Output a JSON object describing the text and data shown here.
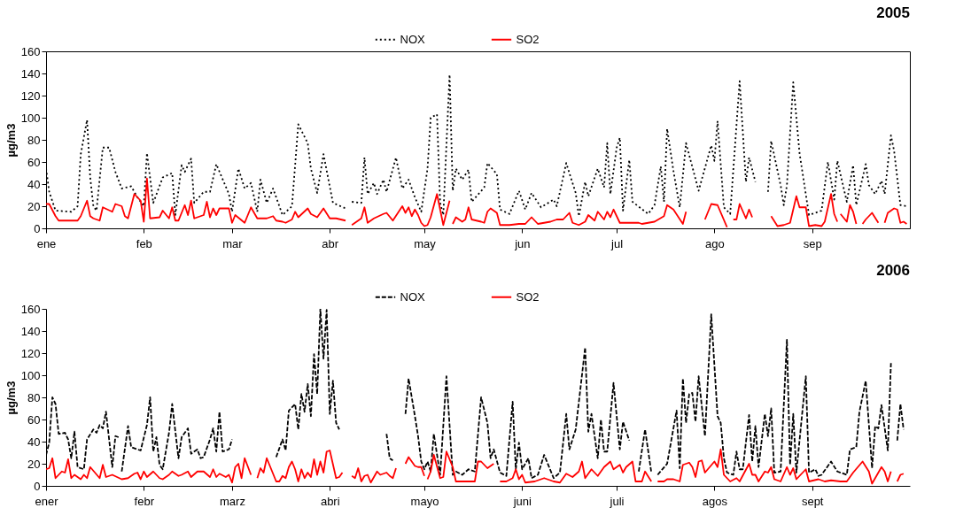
{
  "chart_data": [
    {
      "type": "line",
      "title": "2005",
      "ylabel": "µg/m3",
      "xlim": [
        "2005-01-01",
        "2005-10-02"
      ],
      "ylim": [
        0,
        160
      ],
      "xticks": [
        {
          "value": "2005-01-01",
          "label": "ene"
        },
        {
          "value": "2005-02-01",
          "label": "feb"
        },
        {
          "value": "2005-03-01",
          "label": "mar"
        },
        {
          "value": "2005-04-01",
          "label": "abr"
        },
        {
          "value": "2005-05-01",
          "label": "may"
        },
        {
          "value": "2005-06-01",
          "label": "jun"
        },
        {
          "value": "2005-07-01",
          "label": "jul"
        },
        {
          "value": "2005-08-01",
          "label": "ago"
        },
        {
          "value": "2005-09-01",
          "label": "sep"
        }
      ],
      "yticks": [
        0,
        20,
        40,
        60,
        80,
        100,
        120,
        140,
        160
      ],
      "grid": false,
      "legend": "top",
      "series": [
        {
          "name": "NOX",
          "color": "#000000",
          "line_style": "dotted",
          "x": [
            "2005-01-01",
            "2005-01-02",
            "2005-01-04",
            "2005-01-09",
            "2005-01-11",
            "2005-01-12",
            "2005-01-14",
            "2005-01-15",
            "2005-01-16",
            "2005-01-17",
            "2005-01-19",
            "2005-01-21",
            "2005-01-23",
            "2005-01-25",
            "2005-01-28",
            "2005-01-30",
            "2005-02-01",
            "2005-02-02",
            "2005-02-04",
            "2005-02-07",
            "2005-02-10",
            "2005-02-11",
            "2005-02-13",
            "2005-02-14",
            "2005-02-16",
            "2005-02-17",
            "2005-02-20",
            "2005-02-22",
            "2005-02-24",
            "2005-02-28",
            "2005-03-01",
            "2005-03-03",
            "2005-03-05",
            "2005-03-07",
            "2005-03-09",
            "2005-03-10",
            "2005-03-12",
            "2005-03-14",
            "2005-03-17",
            "2005-03-20",
            "2005-03-22",
            "2005-03-25",
            "2005-03-26",
            "2005-03-28",
            "2005-03-30",
            "2005-04-02",
            "2005-04-06",
            "2005-04-07",
            "2005-04-08",
            "2005-04-11",
            "2005-04-12",
            "2005-04-13",
            "2005-04-15",
            "2005-04-16",
            "2005-04-18",
            "2005-04-19",
            "2005-04-22",
            "2005-04-24",
            "2005-04-26",
            "2005-04-28",
            "2005-04-30",
            "2005-05-02",
            "2005-05-03",
            "2005-05-05",
            "2005-05-06",
            "2005-05-07",
            "2005-05-09",
            "2005-05-10",
            "2005-05-11",
            "2005-05-13",
            "2005-05-15",
            "2005-05-16",
            "2005-05-20",
            "2005-05-21",
            "2005-05-24",
            "2005-05-25",
            "2005-05-28",
            "2005-05-31",
            "2005-06-02",
            "2005-06-04",
            "2005-06-07",
            "2005-06-11",
            "2005-06-12",
            "2005-06-15",
            "2005-06-18",
            "2005-06-19",
            "2005-06-21",
            "2005-06-22",
            "2005-06-25",
            "2005-06-27",
            "2005-06-28",
            "2005-06-29",
            "2005-07-01",
            "2005-07-02",
            "2005-07-03",
            "2005-07-05",
            "2005-07-06",
            "2005-07-11",
            "2005-07-13",
            "2005-07-15",
            "2005-07-16",
            "2005-07-17",
            "2005-07-19",
            "2005-07-21",
            "2005-07-23",
            "2005-07-27",
            "2005-07-31",
            "2005-08-01",
            "2005-08-02",
            "2005-08-04",
            "2005-08-06",
            "2005-08-09",
            "2005-08-11",
            "2005-08-12",
            "2005-08-14",
            "2005-08-16",
            "2005-08-18",
            "2005-08-19",
            "2005-08-22",
            "2005-08-23",
            "2005-08-24",
            "2005-08-26",
            "2005-08-28",
            "2005-08-31",
            "2005-09-04",
            "2005-09-06",
            "2005-09-08",
            "2005-09-09",
            "2005-09-12",
            "2005-09-14",
            "2005-09-15",
            "2005-09-18",
            "2005-09-19",
            "2005-09-21",
            "2005-09-23",
            "2005-09-24",
            "2005-09-26",
            "2005-09-27",
            "2005-09-29",
            "2005-10-01"
          ],
          "values": [
            54,
            33,
            16,
            15,
            20,
            67,
            98,
            46,
            20,
            16,
            73,
            73,
            51,
            36,
            38,
            28,
            20,
            68,
            23,
            46,
            50,
            12,
            57,
            51,
            63,
            23,
            33,
            33,
            58,
            31,
            15,
            54,
            36,
            41,
            15,
            44,
            23,
            36,
            12,
            20,
            94,
            77,
            54,
            32,
            67,
            23,
            18,
            null,
            24,
            23,
            64,
            31,
            41,
            31,
            44,
            33,
            64,
            36,
            44,
            28,
            15,
            54,
            100,
            103,
            23,
            12,
            139,
            34,
            54,
            44,
            53,
            24,
            37,
            59,
            49,
            17,
            13,
            34,
            17,
            32,
            19,
            26,
            20,
            59,
            32,
            11,
            42,
            29,
            54,
            37,
            77,
            31,
            73,
            82,
            16,
            62,
            24,
            13,
            21,
            56,
            24,
            90,
            52,
            19,
            77,
            34,
            75,
            61,
            97,
            19,
            13,
            133,
            42,
            64,
            42,
            null,
            33,
            79,
            39,
            21,
            39,
            132,
            68,
            12,
            16,
            60,
            26,
            61,
            24,
            57,
            21,
            58,
            39,
            31,
            43,
            31,
            84,
            70,
            21,
            20
          ]
        },
        {
          "name": "SO2",
          "color": "#ff0000",
          "line_style": "solid",
          "x": [
            "2005-01-01",
            "2005-01-02",
            "2005-01-04",
            "2005-01-05",
            "2005-01-11",
            "2005-01-12",
            "2005-01-14",
            "2005-01-15",
            "2005-01-16",
            "2005-01-18",
            "2005-01-19",
            "2005-01-22",
            "2005-01-23",
            "2005-01-25",
            "2005-01-26",
            "2005-01-27",
            "2005-01-29",
            "2005-01-31",
            "2005-02-01",
            "2005-02-02",
            "2005-02-03",
            "2005-02-06",
            "2005-02-07",
            "2005-02-09",
            "2005-02-10",
            "2005-02-11",
            "2005-02-12",
            "2005-02-14",
            "2005-02-15",
            "2005-02-16",
            "2005-02-17",
            "2005-02-20",
            "2005-02-21",
            "2005-02-22",
            "2005-02-23",
            "2005-02-24",
            "2005-02-25",
            "2005-02-27",
            "2005-02-28",
            "2005-03-01",
            "2005-03-02",
            "2005-03-05",
            "2005-03-07",
            "2005-03-09",
            "2005-03-12",
            "2005-03-14",
            "2005-03-15",
            "2005-03-17",
            "2005-03-18",
            "2005-03-20",
            "2005-03-21",
            "2005-03-22",
            "2005-03-25",
            "2005-03-26",
            "2005-03-28",
            "2005-03-30",
            "2005-04-01",
            "2005-04-03",
            "2005-04-06",
            "2005-04-07",
            "2005-04-08",
            "2005-04-11",
            "2005-04-12",
            "2005-04-13",
            "2005-04-15",
            "2005-04-18",
            "2005-04-19",
            "2005-04-21",
            "2005-04-24",
            "2005-04-25",
            "2005-04-26",
            "2005-04-27",
            "2005-04-28",
            "2005-04-29",
            "2005-04-30",
            "2005-05-01",
            "2005-05-02",
            "2005-05-03",
            "2005-05-05",
            "2005-05-07",
            "2005-05-09",
            "2005-05-09T12:00",
            "2005-05-10",
            "2005-05-11",
            "2005-05-13",
            "2005-05-14",
            "2005-05-15",
            "2005-05-16",
            "2005-05-19",
            "2005-05-20",
            "2005-05-21",
            "2005-05-22",
            "2005-05-24",
            "2005-05-25",
            "2005-05-28",
            "2005-05-31",
            "2005-06-02",
            "2005-06-04",
            "2005-06-06",
            "2005-06-10",
            "2005-06-12",
            "2005-06-14",
            "2005-06-16",
            "2005-06-17",
            "2005-06-19",
            "2005-06-21",
            "2005-06-22",
            "2005-06-24",
            "2005-06-25",
            "2005-06-27",
            "2005-06-28",
            "2005-06-29",
            "2005-06-30",
            "2005-07-02",
            "2005-07-08",
            "2005-07-09",
            "2005-07-13",
            "2005-07-16",
            "2005-07-17",
            "2005-07-19",
            "2005-07-22",
            "2005-07-23",
            "2005-07-26",
            "2005-07-29",
            "2005-07-31",
            "2005-08-02",
            "2005-08-05",
            "2005-08-06",
            "2005-08-07",
            "2005-08-08",
            "2005-08-09",
            "2005-08-11",
            "2005-08-12",
            "2005-08-13",
            "2005-08-16",
            "2005-08-19",
            "2005-08-21",
            "2005-08-23",
            "2005-08-25",
            "2005-08-27",
            "2005-08-28",
            "2005-08-30",
            "2005-08-31",
            "2005-09-02",
            "2005-09-04",
            "2005-09-05",
            "2005-09-07",
            "2005-09-08",
            "2005-09-09",
            "2005-09-09T12:00",
            "2005-09-10",
            "2005-09-12",
            "2005-09-13",
            "2005-09-14",
            "2005-09-15",
            "2005-09-16",
            "2005-09-17",
            "2005-09-18",
            "2005-09-20",
            "2005-09-22",
            "2005-09-23",
            "2005-09-24",
            "2005-09-25",
            "2005-09-27",
            "2005-09-28",
            "2005-09-29",
            "2005-09-30",
            "2005-10-01"
          ],
          "values": [
            22,
            22,
            11,
            7,
            7,
            11,
            25,
            11,
            9,
            7,
            19,
            15,
            22,
            20,
            11,
            9,
            31,
            25,
            6,
            45,
            9,
            10,
            16,
            9,
            19,
            7,
            7,
            21,
            12,
            25,
            9,
            12,
            24,
            10,
            18,
            12,
            18,
            18,
            18,
            5,
            12,
            5,
            19,
            9,
            9,
            11,
            7,
            6,
            5,
            8,
            15,
            10,
            18,
            13,
            10,
            18,
            9,
            9,
            7,
            null,
            3,
            9,
            19,
            5,
            9,
            13,
            14,
            7,
            20,
            14,
            19,
            11,
            17,
            12,
            5,
            2,
            3,
            10,
            31,
            3,
            25,
            null,
            4,
            10,
            6,
            8,
            19,
            8,
            6,
            5,
            15,
            18,
            14,
            3,
            3,
            4,
            4,
            10,
            4,
            6,
            8,
            8,
            14,
            5,
            3,
            6,
            12,
            7,
            15,
            8,
            15,
            10,
            17,
            5,
            5,
            4,
            6,
            11,
            21,
            17,
            4,
            15,
            null,
            8,
            22,
            21,
            1,
            null,
            8,
            8,
            22,
            9,
            17,
            10,
            null,
            11,
            2,
            3,
            5,
            29,
            19,
            19,
            2,
            3,
            2,
            6,
            31,
            13,
            6,
            null,
            13,
            6,
            21,
            15,
            4,
            null,
            4,
            8,
            14,
            5,
            null,
            5,
            14,
            18,
            17,
            5,
            6,
            4
          ]
        }
      ]
    },
    {
      "type": "line",
      "title": "2006",
      "ylabel": "µg/m3",
      "xlim": [
        "2006-01-01",
        "2006-10-02"
      ],
      "ylim": [
        0,
        160
      ],
      "xticks": [
        {
          "value": "2006-01-01",
          "label": "ener"
        },
        {
          "value": "2006-02-01",
          "label": "febr"
        },
        {
          "value": "2006-03-01",
          "label": "marz"
        },
        {
          "value": "2006-04-01",
          "label": "abri"
        },
        {
          "value": "2006-05-01",
          "label": "mayo"
        },
        {
          "value": "2006-06-01",
          "label": "juni"
        },
        {
          "value": "2006-07-01",
          "label": "juli"
        },
        {
          "value": "2006-08-01",
          "label": "agos"
        },
        {
          "value": "2006-09-01",
          "label": "sept"
        }
      ],
      "yticks": [
        0,
        20,
        40,
        60,
        80,
        100,
        120,
        140,
        160
      ],
      "grid": false,
      "legend": "top",
      "series": [
        {
          "name": "NOX",
          "color": "#000000",
          "line_style": "dashed",
          "x": [
            "2006-01-01",
            "2006-01-02",
            "2006-01-03",
            "2006-01-04",
            "2006-01-05",
            "2006-01-07",
            "2006-01-08",
            "2006-01-09",
            "2006-01-10",
            "2006-01-11",
            "2006-01-13",
            "2006-01-14",
            "2006-01-16",
            "2006-01-17",
            "2006-01-18",
            "2006-01-19",
            "2006-01-20",
            "2006-01-22",
            "2006-01-23",
            "2006-01-24",
            "2006-01-24T12:00",
            "2006-01-25",
            "2006-01-27",
            "2006-01-28",
            "2006-01-31",
            "2006-02-02",
            "2006-02-03",
            "2006-02-04",
            "2006-02-05",
            "2006-02-06",
            "2006-02-07",
            "2006-02-09",
            "2006-02-10",
            "2006-02-12",
            "2006-02-13",
            "2006-02-15",
            "2006-02-16",
            "2006-02-18",
            "2006-02-19",
            "2006-02-20",
            "2006-02-22",
            "2006-02-23",
            "2006-02-24",
            "2006-02-25",
            "2006-02-26",
            "2006-02-28",
            "2006-03-01",
            "2006-03-08",
            "2006-03-15",
            "2006-03-17",
            "2006-03-18",
            "2006-03-19",
            "2006-03-21",
            "2006-03-22",
            "2006-03-23",
            "2006-03-24",
            "2006-03-25",
            "2006-03-26",
            "2006-03-27",
            "2006-03-28",
            "2006-03-29",
            "2006-03-30",
            "2006-03-31",
            "2006-04-01",
            "2006-04-02",
            "2006-04-03",
            "2006-04-04",
            "2006-04-10",
            "2006-04-19",
            "2006-04-20",
            "2006-04-21",
            "2006-04-23",
            "2006-04-25",
            "2006-04-26",
            "2006-04-28",
            "2006-04-29",
            "2006-04-30",
            "2006-05-01",
            "2006-05-02",
            "2006-05-03",
            "2006-05-04",
            "2006-05-06",
            "2006-05-08",
            "2006-05-10",
            "2006-05-11",
            "2006-05-13",
            "2006-05-15",
            "2006-05-17",
            "2006-05-19",
            "2006-05-21",
            "2006-05-22",
            "2006-05-23",
            "2006-05-25",
            "2006-05-27",
            "2006-05-29",
            "2006-05-30",
            "2006-05-31",
            "2006-06-01",
            "2006-06-03",
            "2006-06-04",
            "2006-06-06",
            "2006-06-08",
            "2006-06-11",
            "2006-06-13",
            "2006-06-15",
            "2006-06-16",
            "2006-06-18",
            "2006-06-21",
            "2006-06-22",
            "2006-06-23",
            "2006-06-25",
            "2006-06-26",
            "2006-06-27",
            "2006-06-28",
            "2006-06-30",
            "2006-07-02",
            "2006-07-03",
            "2006-07-05",
            "2006-07-06",
            "2006-07-08",
            "2006-07-10",
            "2006-07-12",
            "2006-07-13",
            "2006-07-14",
            "2006-07-17",
            "2006-07-20",
            "2006-07-21",
            "2006-07-22",
            "2006-07-23",
            "2006-07-24",
            "2006-07-25",
            "2006-07-26",
            "2006-07-27",
            "2006-07-29",
            "2006-07-31",
            "2006-08-02",
            "2006-08-03",
            "2006-08-04",
            "2006-08-05",
            "2006-08-07",
            "2006-08-08",
            "2006-08-09",
            "2006-08-10",
            "2006-08-12",
            "2006-08-13",
            "2006-08-14",
            "2006-08-15",
            "2006-08-17",
            "2006-08-18",
            "2006-08-19",
            "2006-08-20",
            "2006-08-22",
            "2006-08-24",
            "2006-08-25",
            "2006-08-26",
            "2006-08-27",
            "2006-08-30",
            "2006-08-31",
            "2006-09-02",
            "2006-09-03",
            "2006-09-04",
            "2006-09-07",
            "2006-09-09",
            "2006-09-12",
            "2006-09-13",
            "2006-09-15",
            "2006-09-16",
            "2006-09-18",
            "2006-09-20",
            "2006-09-21",
            "2006-09-22",
            "2006-09-23",
            "2006-09-25",
            "2006-09-26",
            "2006-09-27",
            "2006-09-28",
            "2006-09-29",
            "2006-09-30"
          ],
          "values": [
            28,
            39,
            80,
            74,
            47,
            48,
            42,
            25,
            49,
            17,
            15,
            42,
            51,
            48,
            55,
            52,
            67,
            17,
            45,
            44,
            null,
            13,
            54,
            35,
            32,
            55,
            80,
            31,
            44,
            19,
            15,
            48,
            74,
            25,
            44,
            52,
            29,
            33,
            25,
            26,
            42,
            52,
            31,
            67,
            31,
            33,
            42,
            null,
            26,
            42,
            32,
            68,
            74,
            51,
            83,
            67,
            92,
            63,
            119,
            83,
            160,
            115,
            159,
            65,
            95,
            57,
            51,
            null,
            47,
            25,
            23,
            null,
            65,
            97,
            63,
            45,
            22,
            15,
            22,
            13,
            47,
            10,
            99,
            10,
            13,
            10,
            15,
            13,
            80,
            57,
            25,
            33,
            12,
            9,
            76,
            15,
            39,
            15,
            25,
            7,
            10,
            28,
            7,
            12,
            65,
            33,
            51,
            125,
            49,
            65,
            25,
            60,
            31,
            31,
            93,
            33,
            58,
            41,
            null,
            13,
            51,
            12,
            null,
            10,
            20,
            68,
            16,
            97,
            57,
            83,
            84,
            58,
            99,
            45,
            155,
            63,
            57,
            25,
            12,
            10,
            31,
            15,
            15,
            64,
            22,
            54,
            17,
            65,
            45,
            70,
            12,
            13,
            132,
            19,
            65,
            12,
            99,
            12,
            15,
            9,
            10,
            22,
            13,
            10,
            33,
            35,
            67,
            95,
            16,
            54,
            52,
            73,
            32,
            111,
            null,
            41,
            74,
            51
          ]
        },
        {
          "name": "SO2",
          "color": "#ff0000",
          "line_style": "solid",
          "x": [
            "2006-01-01",
            "2006-01-02",
            "2006-01-03",
            "2006-01-04",
            "2006-01-06",
            "2006-01-07",
            "2006-01-08",
            "2006-01-09",
            "2006-01-10",
            "2006-01-12",
            "2006-01-13",
            "2006-01-14",
            "2006-01-15",
            "2006-01-18",
            "2006-01-19",
            "2006-01-20",
            "2006-01-22",
            "2006-01-25",
            "2006-01-27",
            "2006-01-29",
            "2006-01-30",
            "2006-01-31",
            "2006-02-01",
            "2006-02-02",
            "2006-02-04",
            "2006-02-06",
            "2006-02-07",
            "2006-02-09",
            "2006-02-10",
            "2006-02-12",
            "2006-02-13",
            "2006-02-15",
            "2006-02-16",
            "2006-02-18",
            "2006-02-20",
            "2006-02-22",
            "2006-02-23",
            "2006-02-24",
            "2006-02-25",
            "2006-02-27",
            "2006-02-28",
            "2006-03-01",
            "2006-03-02",
            "2006-03-03",
            "2006-03-04",
            "2006-03-05",
            "2006-03-07",
            "2006-03-08",
            "2006-03-09",
            "2006-03-10",
            "2006-03-11",
            "2006-03-12",
            "2006-03-15",
            "2006-03-16",
            "2006-03-17",
            "2006-03-18",
            "2006-03-19",
            "2006-03-20",
            "2006-03-21",
            "2006-03-22",
            "2006-03-23",
            "2006-03-24",
            "2006-03-25",
            "2006-03-26",
            "2006-03-27",
            "2006-03-28",
            "2006-03-29",
            "2006-03-30",
            "2006-03-31",
            "2006-04-01",
            "2006-04-03",
            "2006-04-04",
            "2006-04-05",
            "2006-04-06T12:00",
            "2006-04-08",
            "2006-04-09",
            "2006-04-10",
            "2006-04-11",
            "2006-04-12",
            "2006-04-13",
            "2006-04-14",
            "2006-04-16",
            "2006-04-17",
            "2006-04-19",
            "2006-04-20",
            "2006-04-21",
            "2006-04-22",
            "2006-04-23T12:00",
            "2006-04-25",
            "2006-04-26",
            "2006-04-28",
            "2006-04-29",
            "2006-04-30",
            "2006-05-01",
            "2006-05-01T12:00",
            "2006-05-02",
            "2006-05-03",
            "2006-05-04",
            "2006-05-06",
            "2006-05-07",
            "2006-05-08",
            "2006-05-10",
            "2006-05-11",
            "2006-05-13",
            "2006-05-17",
            "2006-05-18",
            "2006-05-19",
            "2006-05-21",
            "2006-05-23",
            "2006-05-24",
            "2006-05-25",
            "2006-05-27",
            "2006-05-29",
            "2006-05-30",
            "2006-05-31",
            "2006-06-01",
            "2006-06-02",
            "2006-06-05",
            "2006-06-08",
            "2006-06-11",
            "2006-06-13",
            "2006-06-15",
            "2006-06-17",
            "2006-06-19",
            "2006-06-20",
            "2006-06-21",
            "2006-06-23",
            "2006-06-25",
            "2006-06-27",
            "2006-06-29",
            "2006-06-30",
            "2006-07-02",
            "2006-07-03",
            "2006-07-04",
            "2006-07-06",
            "2006-07-07",
            "2006-07-09",
            "2006-07-10",
            "2006-07-12",
            "2006-07-13",
            "2006-07-14",
            "2006-07-16",
            "2006-07-17",
            "2006-07-19",
            "2006-07-21",
            "2006-07-22",
            "2006-07-24",
            "2006-07-25",
            "2006-07-26",
            "2006-07-27",
            "2006-07-28",
            "2006-07-29",
            "2006-08-01",
            "2006-08-02",
            "2006-08-03",
            "2006-08-04",
            "2006-08-06",
            "2006-08-08",
            "2006-08-09",
            "2006-08-12",
            "2006-08-13",
            "2006-08-14",
            "2006-08-15",
            "2006-08-17",
            "2006-08-18",
            "2006-08-19",
            "2006-08-20",
            "2006-08-22",
            "2006-08-24",
            "2006-08-25",
            "2006-08-26",
            "2006-08-27",
            "2006-08-30",
            "2006-08-31",
            "2006-09-03",
            "2006-09-05",
            "2006-09-07",
            "2006-09-10",
            "2006-09-12",
            "2006-09-14",
            "2006-09-17",
            "2006-09-19",
            "2006-09-20",
            "2006-09-21",
            "2006-09-23",
            "2006-09-24",
            "2006-09-25",
            "2006-09-26",
            "2006-09-27",
            "2006-09-28",
            "2006-09-29",
            "2006-09-30"
          ],
          "values": [
            15,
            16,
            25,
            7,
            13,
            12,
            24,
            7,
            10,
            6,
            10,
            7,
            17,
            7,
            19,
            8,
            10,
            6,
            7,
            11,
            12,
            6,
            13,
            8,
            13,
            7,
            6,
            10,
            13,
            9,
            10,
            13,
            8,
            13,
            13,
            8,
            15,
            8,
            11,
            8,
            10,
            3,
            17,
            20,
            7,
            25,
            10,
            null,
            7,
            16,
            12,
            25,
            4,
            4,
            9,
            7,
            17,
            22,
            15,
            4,
            15,
            7,
            12,
            8,
            24,
            10,
            22,
            12,
            31,
            32,
            7,
            8,
            12,
            null,
            9,
            7,
            16,
            4,
            9,
            10,
            3,
            13,
            10,
            12,
            9,
            7,
            16,
            null,
            20,
            26,
            18,
            17,
            17,
            9,
            null,
            6,
            13,
            28,
            7,
            8,
            31,
            17,
            4,
            4,
            4,
            22,
            22,
            16,
            20,
            null,
            4,
            4,
            7,
            15,
            6,
            10,
            3,
            4,
            7,
            4,
            3,
            11,
            8,
            13,
            22,
            7,
            15,
            9,
            17,
            22,
            15,
            19,
            12,
            17,
            22,
            4,
            4,
            13,
            4,
            null,
            4,
            4,
            6,
            6,
            4,
            19,
            21,
            17,
            8,
            22,
            23,
            12,
            22,
            17,
            33,
            10,
            4,
            7,
            4,
            20,
            10,
            10,
            4,
            13,
            12,
            17,
            6,
            4,
            17,
            10,
            16,
            6,
            15,
            4,
            6,
            4,
            5,
            4,
            4,
            12,
            22,
            13,
            2,
            7,
            17,
            13,
            4,
            13,
            null,
            4,
            10,
            11
          ]
        }
      ]
    }
  ]
}
